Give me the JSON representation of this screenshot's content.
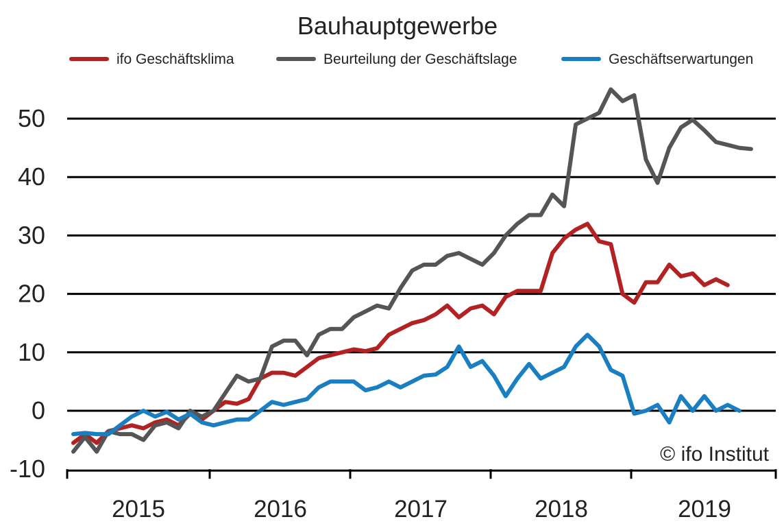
{
  "chart_data": {
    "type": "line",
    "title": "Bauhauptgewerbe",
    "xlabel": "",
    "ylabel": "",
    "ylim": [
      -10,
      55
    ],
    "y_ticks": [
      50,
      40,
      30,
      20,
      10,
      0,
      -10
    ],
    "y_tick_labels": [
      "50",
      "40",
      "30",
      "20",
      "10",
      "0",
      "-10"
    ],
    "x_tick_labels": [
      "2015",
      "2016",
      "2017",
      "2018",
      "2019"
    ],
    "x_start": "2015-01",
    "grid": true,
    "legend_position": "top",
    "copyright": "© ifo Institut",
    "series": [
      {
        "name": "ifo Geschäftsklima",
        "color": "#b22222",
        "values": [
          -5.5,
          -4,
          -5.5,
          -3.5,
          -3,
          -2.5,
          -3,
          -2,
          -1.5,
          -2.5,
          -0.5,
          -1.5,
          0,
          1.5,
          1.2,
          2,
          5.5,
          6.5,
          6.5,
          6,
          7.5,
          9,
          9.5,
          10,
          10.5,
          10.2,
          10.7,
          13,
          14,
          15,
          15.5,
          16.5,
          18,
          16,
          17.5,
          18,
          16.5,
          19.5,
          20.5,
          20.5,
          20.5,
          27,
          29.5,
          31,
          32,
          29,
          28.5,
          20,
          18.5,
          22,
          22,
          25,
          23,
          23.5,
          21.5,
          22.5,
          21.5
        ]
      },
      {
        "name": "Beurteilung der Geschäftslage",
        "color": "#555555",
        "values": [
          -7,
          -4.5,
          -7,
          -3.5,
          -4,
          -4,
          -5,
          -2.5,
          -2,
          -3,
          0,
          -1,
          0,
          3,
          6,
          5,
          5.5,
          11,
          12,
          12,
          9.5,
          13,
          14,
          14,
          16,
          17,
          18,
          17.5,
          21,
          24,
          25,
          25,
          26.5,
          27,
          26,
          25,
          27,
          30,
          32,
          33.5,
          33.5,
          37,
          35,
          49,
          50,
          51,
          55,
          53,
          54,
          43,
          39,
          45,
          48.5,
          49.8,
          48,
          46,
          45.5,
          45,
          44.8
        ]
      },
      {
        "name": "Geschäftserwartungen",
        "color": "#1a7fc1",
        "values": [
          -4,
          -3.8,
          -4,
          -4,
          -2.5,
          -1,
          0,
          -1,
          -0.2,
          -1.5,
          -0.5,
          -2,
          -2.5,
          -2,
          -1.5,
          -1.5,
          0,
          1.5,
          1,
          1.5,
          2,
          4,
          5,
          5,
          5,
          3.5,
          4,
          5,
          4,
          5,
          6,
          6.2,
          7.5,
          11,
          7.5,
          8.5,
          6,
          2.5,
          5.5,
          8,
          5.5,
          6.5,
          7.5,
          11,
          13,
          11,
          7,
          6,
          -0.5,
          0,
          1,
          -2,
          2.5,
          0,
          2.5,
          0,
          1,
          0
        ]
      }
    ]
  }
}
